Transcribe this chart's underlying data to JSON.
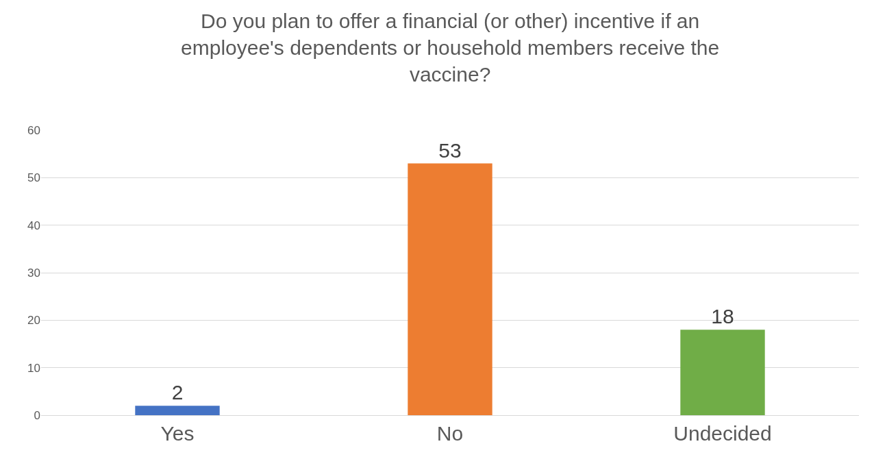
{
  "chart_data": {
    "type": "bar",
    "title": "Do you plan to offer a financial (or other) incentive if an employee's dependents or household members receive the vaccine?",
    "categories": [
      "Yes",
      "No",
      "Undecided"
    ],
    "values": [
      2,
      53,
      18
    ],
    "colors": [
      "#4472c4",
      "#ed7d31",
      "#70ad47"
    ],
    "ylim": [
      0,
      60
    ],
    "yticks": [
      0,
      10,
      20,
      30,
      40,
      50,
      60
    ],
    "grid": "y",
    "data_labels": true
  }
}
